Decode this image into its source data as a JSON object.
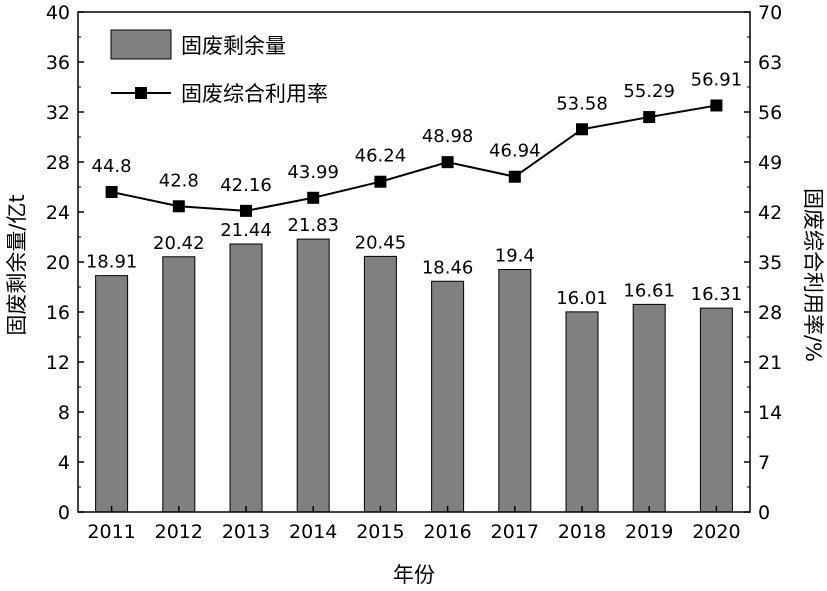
{
  "chart_data": {
    "type": "bar",
    "categories": [
      "2011",
      "2012",
      "2013",
      "2014",
      "2015",
      "2016",
      "2017",
      "2018",
      "2019",
      "2020"
    ],
    "series": [
      {
        "name": "固废剩余量",
        "type": "bar",
        "axis": "left",
        "values": [
          18.91,
          20.42,
          21.44,
          21.83,
          20.45,
          18.46,
          19.4,
          16.01,
          16.61,
          16.31
        ],
        "labels": [
          "18.91",
          "20.42",
          "21.44",
          "21.83",
          "20.45",
          "18.46",
          "19.4",
          "16.01",
          "16.61",
          "16.31"
        ],
        "color": "#808080"
      },
      {
        "name": "固废综合利用率",
        "type": "line",
        "axis": "right",
        "values": [
          44.8,
          42.8,
          42.16,
          43.99,
          46.24,
          48.98,
          46.94,
          53.58,
          55.29,
          56.91
        ],
        "labels": [
          "44.8",
          "42.8",
          "42.16",
          "43.99",
          "46.24",
          "48.98",
          "46.94",
          "53.58",
          "55.29",
          "56.91"
        ],
        "color": "#000000",
        "marker": "square"
      }
    ],
    "xlabel": "年份",
    "ylabel": "固废剩余量/亿t",
    "y2label": "固废综合利用率/%",
    "ylim": [
      0,
      40
    ],
    "y2lim": [
      0,
      70
    ],
    "yticks": [
      "0",
      "4",
      "8",
      "12",
      "16",
      "20",
      "24",
      "28",
      "32",
      "36",
      "40"
    ],
    "y2ticks": [
      "0",
      "7",
      "14",
      "21",
      "28",
      "35",
      "42",
      "49",
      "56",
      "63",
      "70"
    ],
    "legend_position": "top-left",
    "grid": false
  }
}
